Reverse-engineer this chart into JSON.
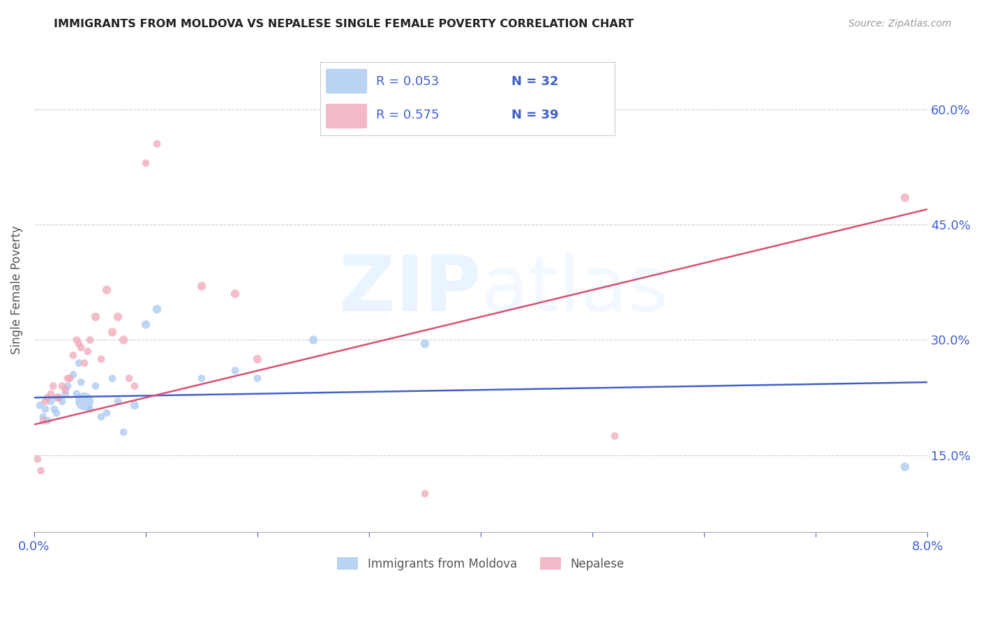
{
  "title": "IMMIGRANTS FROM MOLDOVA VS NEPALESE SINGLE FEMALE POVERTY CORRELATION CHART",
  "source": "Source: ZipAtlas.com",
  "ylabel": "Single Female Poverty",
  "legend_blue_series": "Immigrants from Moldova",
  "legend_pink_series": "Nepalese",
  "blue_color": "#a8c8f0",
  "pink_color": "#f0a8b8",
  "blue_line_color": "#4060c8",
  "pink_line_color": "#d85070",
  "watermark_zip": "ZIP",
  "watermark_atlas": "atlas",
  "background_color": "#ffffff",
  "legend_text_color": "#4060c8",
  "title_color": "#222222",
  "source_color": "#999999",
  "xlim": [
    0.0,
    8.0
  ],
  "ylim": [
    5.0,
    68.0
  ],
  "y_tick_vals": [
    15.0,
    30.0,
    45.0,
    60.0
  ],
  "x_tick_show": [
    0.0,
    8.0
  ],
  "blue_scatter_x": [
    0.05,
    0.08,
    0.1,
    0.12,
    0.15,
    0.18,
    0.2,
    0.22,
    0.25,
    0.28,
    0.3,
    0.35,
    0.38,
    0.4,
    0.42,
    0.45,
    0.5,
    0.55,
    0.6,
    0.65,
    0.7,
    0.75,
    0.8,
    0.9,
    1.0,
    1.1,
    1.5,
    1.8,
    2.0,
    2.5,
    3.5,
    7.8
  ],
  "blue_scatter_y": [
    21.5,
    20.0,
    21.0,
    19.5,
    22.0,
    21.0,
    20.5,
    22.5,
    22.0,
    23.0,
    24.0,
    25.5,
    23.0,
    27.0,
    24.5,
    22.0,
    21.0,
    24.0,
    20.0,
    20.5,
    25.0,
    22.0,
    18.0,
    21.5,
    32.0,
    34.0,
    25.0,
    26.0,
    25.0,
    30.0,
    29.5,
    13.5
  ],
  "blue_scatter_sizes": [
    60,
    60,
    60,
    60,
    60,
    60,
    60,
    60,
    60,
    60,
    60,
    60,
    60,
    60,
    60,
    350,
    60,
    60,
    60,
    60,
    60,
    60,
    60,
    80,
    80,
    80,
    60,
    60,
    60,
    80,
    80,
    80
  ],
  "pink_scatter_x": [
    0.03,
    0.06,
    0.08,
    0.1,
    0.12,
    0.15,
    0.17,
    0.2,
    0.22,
    0.25,
    0.28,
    0.3,
    0.32,
    0.35,
    0.38,
    0.4,
    0.42,
    0.45,
    0.48,
    0.5,
    0.55,
    0.6,
    0.65,
    0.7,
    0.75,
    0.8,
    0.85,
    0.9,
    1.0,
    1.1,
    1.5,
    1.8,
    2.0,
    3.5,
    5.2,
    7.8
  ],
  "pink_scatter_y": [
    14.5,
    13.0,
    19.5,
    22.0,
    22.5,
    23.0,
    24.0,
    22.5,
    22.5,
    24.0,
    23.5,
    25.0,
    25.0,
    28.0,
    30.0,
    29.5,
    29.0,
    27.0,
    28.5,
    30.0,
    33.0,
    27.5,
    36.5,
    31.0,
    33.0,
    30.0,
    25.0,
    24.0,
    53.0,
    55.5,
    37.0,
    36.0,
    27.5,
    10.0,
    17.5,
    48.5
  ],
  "pink_scatter_sizes": [
    60,
    60,
    60,
    60,
    60,
    60,
    60,
    60,
    60,
    60,
    60,
    60,
    60,
    60,
    60,
    60,
    60,
    60,
    60,
    60,
    80,
    60,
    80,
    80,
    80,
    80,
    60,
    60,
    60,
    60,
    80,
    80,
    80,
    60,
    60,
    80
  ],
  "blue_line_x": [
    0.0,
    8.0
  ],
  "blue_line_y": [
    22.5,
    24.5
  ],
  "pink_line_x": [
    0.0,
    8.0
  ],
  "pink_line_y": [
    19.0,
    47.0
  ]
}
